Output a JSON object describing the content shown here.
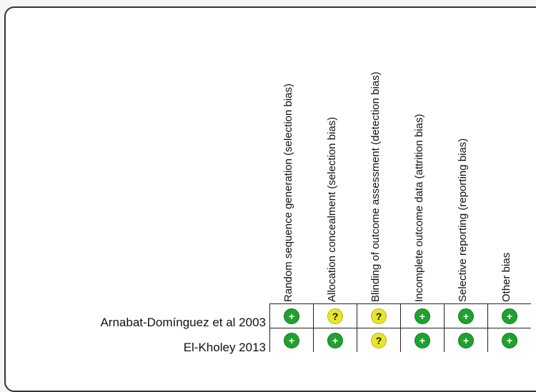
{
  "domains": [
    "Random sequence generation (selection bias)",
    "Allocation concealment (selection bias)",
    "Blinding of outcome assessment (detection bias)",
    "Incomplete outcome data (attrition bias)",
    "Selective reporting (reporting bias)",
    "Other bias"
  ],
  "studies": [
    {
      "name": "Arnabat-Domínguez et al 2003",
      "judgements": [
        "low",
        "unclear",
        "unclear",
        "low",
        "low",
        "low"
      ]
    },
    {
      "name": "El-Kholey 2013",
      "judgements": [
        "low",
        "low",
        "unclear",
        "low",
        "low",
        "low"
      ]
    }
  ],
  "symbols": {
    "low": "+",
    "unclear": "?"
  },
  "colors": {
    "low": "#1fa12f",
    "unclear": "#e6e62a"
  }
}
